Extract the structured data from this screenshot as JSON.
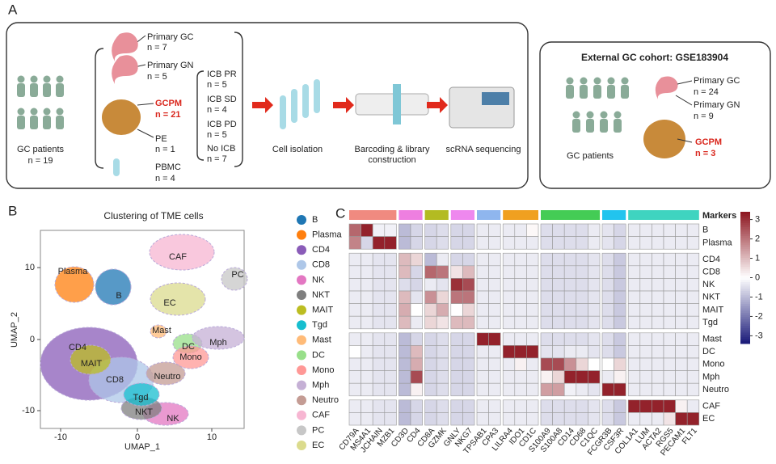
{
  "panel_a": {
    "label": "A",
    "patients": {
      "label": "GC patients",
      "n": "n = 19"
    },
    "samples": [
      {
        "label": "Primary GC",
        "n": "n = 7"
      },
      {
        "label": "Primary GN",
        "n": "n = 5"
      },
      {
        "label": "GCPM",
        "n": "n = 21"
      },
      {
        "label": "PE",
        "n": "n = 1"
      },
      {
        "label": "PBMC",
        "n": "n = 4"
      }
    ],
    "icb": [
      {
        "label": "ICB PR",
        "n": "n = 5"
      },
      {
        "label": "ICB SD",
        "n": "n = 4"
      },
      {
        "label": "ICB PD",
        "n": "n = 5"
      },
      {
        "label": "No ICB",
        "n": "n = 7"
      }
    ],
    "steps": [
      "Cell isolation",
      "Barcoding & library",
      "construction",
      "scRNA sequencing"
    ],
    "external": {
      "title": "External GC cohort: GSE183904",
      "patients": "GC patients",
      "samples": [
        {
          "label": "Primary GC",
          "n": "n = 24"
        },
        {
          "label": "Primary GN",
          "n": "n = 9"
        },
        {
          "label": "GCPM",
          "n": "n = 3"
        }
      ]
    }
  },
  "panel_b": {
    "label": "B",
    "title": "Clustering of TME cells",
    "x_label": "UMAP_1",
    "y_label": "UMAP_2",
    "xticks": [
      "-10",
      "0",
      "10"
    ],
    "yticks": [
      "10",
      "0",
      "-10"
    ],
    "clusters": [
      {
        "name": "B",
        "color": "#1f77b4"
      },
      {
        "name": "Plasma",
        "color": "#ff7f0e"
      },
      {
        "name": "CD4",
        "color": "#8a5cb8"
      },
      {
        "name": "CD8",
        "color": "#aec7e8"
      },
      {
        "name": "NK",
        "color": "#e377c2"
      },
      {
        "name": "NKT",
        "color": "#7f7f7f"
      },
      {
        "name": "MAIT",
        "color": "#bcbd22"
      },
      {
        "name": "Tgd",
        "color": "#17becf"
      },
      {
        "name": "Mast",
        "color": "#ffbb78"
      },
      {
        "name": "DC",
        "color": "#98df8a"
      },
      {
        "name": "Mono",
        "color": "#ff9896"
      },
      {
        "name": "Mph",
        "color": "#c5b0d5"
      },
      {
        "name": "Neutro",
        "color": "#c49c94"
      },
      {
        "name": "CAF",
        "color": "#f7b6d2"
      },
      {
        "name": "PC",
        "color": "#c7c7c7"
      },
      {
        "name": "EC",
        "color": "#dbdb8d"
      }
    ]
  },
  "panel_c": {
    "label": "C",
    "legend_title": "Markers",
    "gene_groups": [
      {
        "color": "#f08a80",
        "genes": [
          "CD79A",
          "MS4A1",
          "JCHAIN",
          "MZB1"
        ]
      },
      {
        "color": "#ee7fe0",
        "genes": [
          "CD3D",
          "CD4"
        ]
      },
      {
        "color": "#b3bb22",
        "genes": [
          "CD8A",
          "GZMK"
        ]
      },
      {
        "color": "#ee88ee",
        "genes": [
          "GNLY",
          "NKG7"
        ]
      },
      {
        "color": "#8fb6ee",
        "genes": [
          "TPSAB1",
          "CPA3"
        ]
      },
      {
        "color": "#f0a020",
        "genes": [
          "LILRA4",
          "IDO1",
          "CD1C"
        ]
      },
      {
        "color": "#44cc55",
        "genes": [
          "S100A9",
          "S100A8",
          "CD14",
          "CD68",
          "C1QC"
        ]
      },
      {
        "color": "#22c4ee",
        "genes": [
          "FCGR3B",
          "CSF3R"
        ]
      },
      {
        "color": "#3fd4c0",
        "genes": [
          "COL1A1",
          "LUM",
          "ACTA2",
          "RGS5",
          "PECAM1",
          "FLT1"
        ]
      }
    ],
    "row_groups": [
      [
        "B",
        "Plasma"
      ],
      [
        "CD4",
        "CD8",
        "NK",
        "NKT",
        "MAIT",
        "Tgd"
      ],
      [
        "Mast",
        "DC",
        "Mono",
        "Mph",
        "Neutro"
      ],
      [
        "CAF",
        "EC"
      ]
    ],
    "values": [
      [
        2.2,
        3.2,
        -0.2,
        -0.2,
        -1,
        -0.6,
        -0.6,
        -0.5,
        -0.6,
        -0.6,
        -0.3,
        -0.3,
        -0.3,
        -0.3,
        0.1,
        -0.5,
        -0.5,
        -0.5,
        -0.5,
        -0.3,
        -0.4,
        -0.6,
        -0.3,
        -0.3,
        -0.3,
        -0.3,
        -0.3,
        -0.3
      ],
      [
        1.8,
        -0.6,
        3.2,
        3.2,
        -1,
        -0.6,
        -0.6,
        -0.5,
        -0.6,
        -0.6,
        -0.3,
        -0.3,
        -0.3,
        -0.3,
        -0.3,
        -0.5,
        -0.5,
        -0.5,
        -0.5,
        -0.3,
        -0.4,
        -0.6,
        -0.3,
        -0.3,
        -0.3,
        -0.3,
        -0.3,
        -0.3
      ],
      [
        -0.3,
        -0.3,
        -0.4,
        -0.4,
        1,
        0.6,
        -1,
        -0.3,
        -0.6,
        -0.6,
        -0.3,
        -0.3,
        -0.3,
        -0.3,
        -0.3,
        -0.5,
        -0.5,
        -0.5,
        -0.5,
        -0.4,
        -0.5,
        -0.8,
        -0.3,
        -0.3,
        -0.3,
        -0.3,
        -0.3,
        -0.3
      ],
      [
        -0.3,
        -0.3,
        -0.4,
        -0.4,
        1,
        -0.6,
        2.2,
        2,
        0.4,
        1,
        -0.3,
        -0.3,
        -0.3,
        -0.3,
        -0.3,
        -0.5,
        -0.5,
        -0.5,
        -0.5,
        -0.4,
        -0.5,
        -0.8,
        -0.3,
        -0.3,
        -0.3,
        -0.3,
        -0.3,
        -0.3
      ],
      [
        -0.3,
        -0.3,
        -0.4,
        -0.4,
        -0.5,
        -0.6,
        -0.3,
        -0.4,
        3,
        2.6,
        -0.3,
        -0.3,
        -0.3,
        -0.3,
        -0.3,
        -0.5,
        -0.5,
        -0.5,
        -0.5,
        -0.4,
        -0.5,
        -0.8,
        -0.3,
        -0.3,
        -0.3,
        -0.3,
        -0.3,
        -0.3
      ],
      [
        -0.3,
        -0.3,
        -0.4,
        -0.4,
        1,
        -0.4,
        1.6,
        0.6,
        2,
        2,
        -0.3,
        -0.3,
        -0.3,
        -0.3,
        -0.3,
        -0.5,
        -0.5,
        -0.5,
        -0.5,
        -0.4,
        -0.5,
        -0.8,
        -0.3,
        -0.3,
        -0.3,
        -0.3,
        -0.3,
        -0.3
      ],
      [
        -0.3,
        -0.3,
        -0.4,
        -0.4,
        1.2,
        0,
        0.6,
        1.2,
        0,
        0.6,
        -0.3,
        -0.3,
        -0.3,
        -0.3,
        -0.3,
        -0.5,
        -0.5,
        -0.5,
        -0.5,
        -0.4,
        -0.5,
        -0.8,
        -0.3,
        -0.3,
        -0.3,
        -0.3,
        -0.3,
        -0.3
      ],
      [
        -0.3,
        -0.3,
        -0.4,
        -0.4,
        1,
        -0.3,
        0.6,
        0.4,
        1,
        1,
        -0.3,
        -0.3,
        -0.3,
        -0.3,
        -0.3,
        -0.5,
        -0.5,
        -0.5,
        -0.5,
        -0.4,
        -0.5,
        -0.8,
        -0.3,
        -0.3,
        -0.3,
        -0.3,
        -0.3,
        -0.3
      ],
      [
        -0.3,
        -0.3,
        -0.4,
        -0.4,
        -1,
        -0.6,
        -0.6,
        -0.5,
        -0.6,
        -0.6,
        3.2,
        3.2,
        -0.3,
        -0.3,
        -0.3,
        -0.5,
        -0.5,
        -0.5,
        -0.5,
        -0.4,
        -0.5,
        -0.8,
        -0.3,
        -0.3,
        -0.3,
        -0.3,
        -0.3,
        -0.3
      ],
      [
        0,
        -0.3,
        -0.4,
        -0.4,
        -1,
        1,
        -0.6,
        -0.5,
        -0.6,
        -0.6,
        -0.3,
        -0.3,
        3.2,
        3.2,
        3.2,
        -0.4,
        -0.4,
        -0.3,
        -0.3,
        -0.4,
        -0.5,
        -0.8,
        -0.3,
        -0.3,
        -0.3,
        -0.3,
        -0.3,
        -0.3
      ],
      [
        -0.3,
        -0.3,
        -0.4,
        -0.4,
        -1,
        1.2,
        -0.6,
        -0.5,
        -0.6,
        -0.6,
        -0.3,
        -0.3,
        -0.3,
        0.2,
        -0.3,
        2.6,
        2.6,
        1.6,
        0.6,
        0,
        0,
        0.6,
        -0.3,
        -0.3,
        -0.3,
        -0.3,
        -0.3,
        -0.3
      ],
      [
        -0.3,
        -0.3,
        -0.4,
        -0.4,
        -1,
        2.6,
        -0.6,
        -0.5,
        -0.6,
        -0.6,
        -0.3,
        -0.3,
        -0.3,
        -0.3,
        -0.3,
        0.2,
        0.6,
        3.2,
        3.2,
        3.2,
        -0.3,
        0.2,
        -0.3,
        -0.3,
        -0.3,
        -0.3,
        -0.3,
        -0.3
      ],
      [
        -0.3,
        -0.3,
        -0.4,
        -0.4,
        -1,
        0.2,
        -0.6,
        -0.5,
        -0.6,
        -0.6,
        -0.3,
        -0.3,
        -0.3,
        -0.3,
        -0.3,
        1.4,
        1.4,
        -0.2,
        -0.3,
        -0.4,
        3.2,
        3.2,
        -0.3,
        -0.3,
        -0.3,
        -0.3,
        -0.3,
        -0.3
      ],
      [
        -0.3,
        -0.3,
        -0.4,
        -0.4,
        -1,
        -0.6,
        -0.6,
        -0.5,
        -0.6,
        -0.6,
        -0.3,
        -0.3,
        -0.3,
        -0.3,
        -0.3,
        -0.5,
        -0.5,
        -0.5,
        -0.5,
        -0.4,
        -0.5,
        -0.8,
        3.2,
        3.2,
        3.2,
        3.2,
        0.2,
        -0.3
      ],
      [
        -0.3,
        -0.3,
        -0.4,
        -0.4,
        -1,
        -0.6,
        -0.6,
        -0.5,
        -0.6,
        -0.6,
        -0.3,
        -0.3,
        -0.3,
        -0.3,
        -0.3,
        -0.5,
        -0.5,
        -0.5,
        -0.5,
        -0.4,
        -0.5,
        -0.8,
        -0.3,
        -0.3,
        -0.3,
        0.4,
        3.2,
        3.2
      ]
    ],
    "color_limits": [
      -3.4,
      3.4
    ],
    "colorbar_ticks": [
      3,
      2,
      1,
      0,
      -1,
      -2,
      -3
    ]
  }
}
